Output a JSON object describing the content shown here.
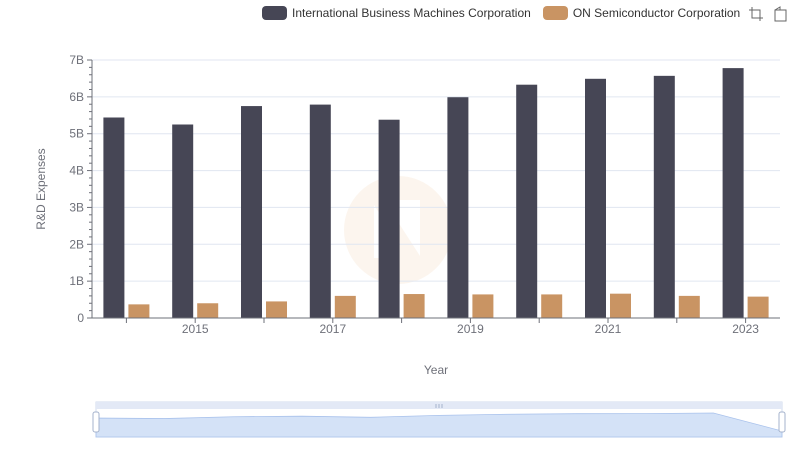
{
  "chart_data": {
    "type": "bar",
    "categories": [
      "2014",
      "2015",
      "2016",
      "2017",
      "2018",
      "2019",
      "2020",
      "2021",
      "2022",
      "2023"
    ],
    "xtick_labels": [
      "2015",
      "2017",
      "2019",
      "2021",
      "2023"
    ],
    "series": [
      {
        "name": "International Business Machines Corporation",
        "color": "#464655",
        "values": [
          5.44,
          5.25,
          5.75,
          5.79,
          5.38,
          5.99,
          6.33,
          6.49,
          6.57,
          6.78
        ]
      },
      {
        "name": "ON Semiconductor Corporation",
        "color": "#c99463",
        "values": [
          0.37,
          0.4,
          0.45,
          0.6,
          0.65,
          0.64,
          0.64,
          0.66,
          0.6,
          0.58
        ]
      }
    ],
    "yticks": [
      0,
      1,
      2,
      3,
      4,
      5,
      6,
      7
    ],
    "ytick_labels": [
      "0",
      "1B",
      "2B",
      "3B",
      "4B",
      "5B",
      "6B",
      "7B"
    ],
    "ylim": [
      0,
      7
    ],
    "xlabel": "Year",
    "ylabel": "R&D Expenses",
    "grid": true,
    "legend_position": "top-right"
  },
  "toolbox": {
    "zoom_icon": "zoom-icon",
    "restore_icon": "restore-icon"
  },
  "datazoom": {
    "fill_color": "#d4e2f7",
    "handle_color": "#ffffff"
  }
}
